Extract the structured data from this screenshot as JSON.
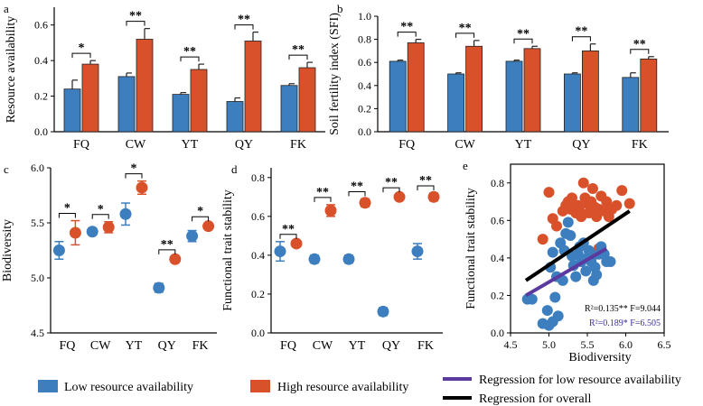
{
  "colors": {
    "low": "#3d7ebf",
    "high": "#d9512b",
    "low_line": "#5b3aa0",
    "overall_line": "#000000"
  },
  "panels": {
    "a": {
      "letter": "a"
    },
    "b": {
      "letter": "b"
    },
    "c": {
      "letter": "c"
    },
    "d": {
      "letter": "d"
    },
    "e": {
      "letter": "e"
    }
  },
  "legend": {
    "low": "Low resource availability",
    "high": "High resource availability",
    "reg_low": "Regression for low resource availability",
    "reg_overall": "Regression for overall"
  },
  "chart_data": [
    {
      "id": "a",
      "type": "bar",
      "ylabel": "Resource availability",
      "categories": [
        "FQ",
        "CW",
        "YT",
        "QY",
        "FK"
      ],
      "ylim": [
        0,
        0.7
      ],
      "yticks": [
        "0.0",
        "0.2",
        "0.4",
        "0.6"
      ],
      "series": [
        {
          "name": "Low resource availability",
          "values": [
            0.24,
            0.31,
            0.21,
            0.17,
            0.26
          ],
          "errors": [
            0.05,
            0.02,
            0.01,
            0.02,
            0.01
          ]
        },
        {
          "name": "High resource availability",
          "values": [
            0.38,
            0.52,
            0.35,
            0.51,
            0.36
          ],
          "errors": [
            0.02,
            0.06,
            0.03,
            0.05,
            0.03
          ]
        }
      ],
      "significance": [
        "*",
        "**",
        "**",
        "**",
        "**"
      ]
    },
    {
      "id": "b",
      "type": "bar",
      "ylabel": "Soil fertility index (SFI)",
      "categories": [
        "FQ",
        "CW",
        "YT",
        "QY",
        "FK"
      ],
      "ylim": [
        0,
        1.0
      ],
      "yticks": [
        "0.0",
        "0.2",
        "0.4",
        "0.6",
        "0.8",
        "1.0"
      ],
      "series": [
        {
          "name": "Low resource availability",
          "values": [
            0.61,
            0.5,
            0.61,
            0.5,
            0.47
          ],
          "errors": [
            0.01,
            0.01,
            0.01,
            0.01,
            0.04
          ]
        },
        {
          "name": "High resource availability",
          "values": [
            0.77,
            0.74,
            0.72,
            0.7,
            0.63
          ],
          "errors": [
            0.03,
            0.05,
            0.02,
            0.06,
            0.02
          ]
        }
      ],
      "significance": [
        "**",
        "**",
        "**",
        "**",
        "**"
      ]
    },
    {
      "id": "c",
      "type": "scatter",
      "ylabel": "Biodiversity",
      "categories": [
        "FQ",
        "CW",
        "YT",
        "QY",
        "FK"
      ],
      "ylim": [
        4.5,
        6.0
      ],
      "yticks": [
        "4.5",
        "5.0",
        "5.5",
        "6.0"
      ],
      "series": [
        {
          "name": "Low resource availability",
          "values": [
            5.25,
            5.42,
            5.58,
            4.91,
            5.38
          ],
          "errors": [
            0.08,
            0.02,
            0.1,
            0.04,
            0.05
          ]
        },
        {
          "name": "High resource availability",
          "values": [
            5.41,
            5.46,
            5.82,
            5.17,
            5.47
          ],
          "errors": [
            0.11,
            0.05,
            0.06,
            0.02,
            0.02
          ]
        }
      ],
      "significance": [
        "*",
        "*",
        "*",
        "**",
        "*"
      ]
    },
    {
      "id": "d",
      "type": "scatter",
      "ylabel": "Functional trait stability",
      "categories": [
        "FQ",
        "CW",
        "YT",
        "QY",
        "FK"
      ],
      "ylim": [
        0,
        0.85
      ],
      "yticks": [
        "0.0",
        "0.2",
        "0.4",
        "0.6",
        "0.8"
      ],
      "series": [
        {
          "name": "Low resource availability",
          "values": [
            0.42,
            0.38,
            0.38,
            0.11,
            0.42
          ],
          "errors": [
            0.05,
            0.02,
            0.02,
            0.02,
            0.04
          ]
        },
        {
          "name": "High resource availability",
          "values": [
            0.46,
            0.63,
            0.67,
            0.7,
            0.7
          ],
          "errors": [
            0.01,
            0.03,
            0.02,
            0.01,
            0.02
          ]
        }
      ],
      "significance": [
        "**",
        "**",
        "**",
        "**",
        "**"
      ]
    },
    {
      "id": "e",
      "type": "scatter",
      "xlabel": "Biodiversity",
      "ylabel": "Functional trait stability",
      "xlim": [
        4.5,
        6.5
      ],
      "ylim": [
        0,
        0.9
      ],
      "xticks": [
        "4.5",
        "5.0",
        "5.5",
        "6.0",
        "6.5"
      ],
      "yticks": [
        "0.0",
        "0.2",
        "0.4",
        "0.6",
        "0.8"
      ],
      "low_points": [
        [
          4.72,
          0.18
        ],
        [
          4.78,
          0.18
        ],
        [
          4.92,
          0.05
        ],
        [
          5.0,
          0.04
        ],
        [
          5.05,
          0.06
        ],
        [
          4.98,
          0.12
        ],
        [
          5.08,
          0.19
        ],
        [
          5.12,
          0.09
        ],
        [
          5.02,
          0.35
        ],
        [
          5.1,
          0.3
        ],
        [
          5.18,
          0.28
        ],
        [
          5.05,
          0.43
        ],
        [
          5.15,
          0.48
        ],
        [
          5.2,
          0.44
        ],
        [
          5.22,
          0.53
        ],
        [
          5.25,
          0.59
        ],
        [
          5.28,
          0.52
        ],
        [
          5.3,
          0.41
        ],
        [
          5.32,
          0.36
        ],
        [
          5.35,
          0.3
        ],
        [
          5.38,
          0.42
        ],
        [
          5.4,
          0.46
        ],
        [
          5.42,
          0.38
        ],
        [
          5.45,
          0.48
        ],
        [
          5.48,
          0.33
        ],
        [
          5.5,
          0.4
        ],
        [
          5.52,
          0.44
        ],
        [
          5.55,
          0.38
        ],
        [
          5.58,
          0.28
        ],
        [
          5.6,
          0.35
        ],
        [
          5.62,
          0.31
        ],
        [
          5.65,
          0.42
        ],
        [
          5.68,
          0.46
        ],
        [
          5.72,
          0.42
        ],
        [
          5.75,
          0.38
        ],
        [
          5.8,
          0.38
        ]
      ],
      "high_points": [
        [
          4.92,
          0.5
        ],
        [
          5.0,
          0.75
        ],
        [
          5.05,
          0.61
        ],
        [
          5.1,
          0.57
        ],
        [
          5.18,
          0.65
        ],
        [
          5.22,
          0.68
        ],
        [
          5.25,
          0.7
        ],
        [
          5.28,
          0.66
        ],
        [
          5.3,
          0.72
        ],
        [
          5.32,
          0.68
        ],
        [
          5.35,
          0.64
        ],
        [
          5.38,
          0.68
        ],
        [
          5.4,
          0.65
        ],
        [
          5.42,
          0.62
        ],
        [
          5.45,
          0.8
        ],
        [
          5.47,
          0.72
        ],
        [
          5.5,
          0.69
        ],
        [
          5.52,
          0.64
        ],
        [
          5.55,
          0.7
        ],
        [
          5.57,
          0.77
        ],
        [
          5.6,
          0.67
        ],
        [
          5.62,
          0.62
        ],
        [
          5.65,
          0.66
        ],
        [
          5.68,
          0.73
        ],
        [
          5.72,
          0.65
        ],
        [
          5.75,
          0.7
        ],
        [
          5.78,
          0.62
        ],
        [
          5.82,
          0.66
        ],
        [
          5.88,
          0.68
        ],
        [
          5.95,
          0.76
        ],
        [
          6.05,
          0.69
        ],
        [
          5.6,
          0.42
        ],
        [
          5.65,
          0.45
        ]
      ],
      "regression_low": {
        "x": [
          4.7,
          5.75
        ],
        "y": [
          0.2,
          0.45
        ]
      },
      "regression_overall": {
        "x": [
          4.7,
          6.05
        ],
        "y": [
          0.28,
          0.65
        ]
      },
      "annotation_overall": "R²=0.135** F=9.044",
      "annotation_low": "R²=0.189* F=6.505"
    }
  ]
}
